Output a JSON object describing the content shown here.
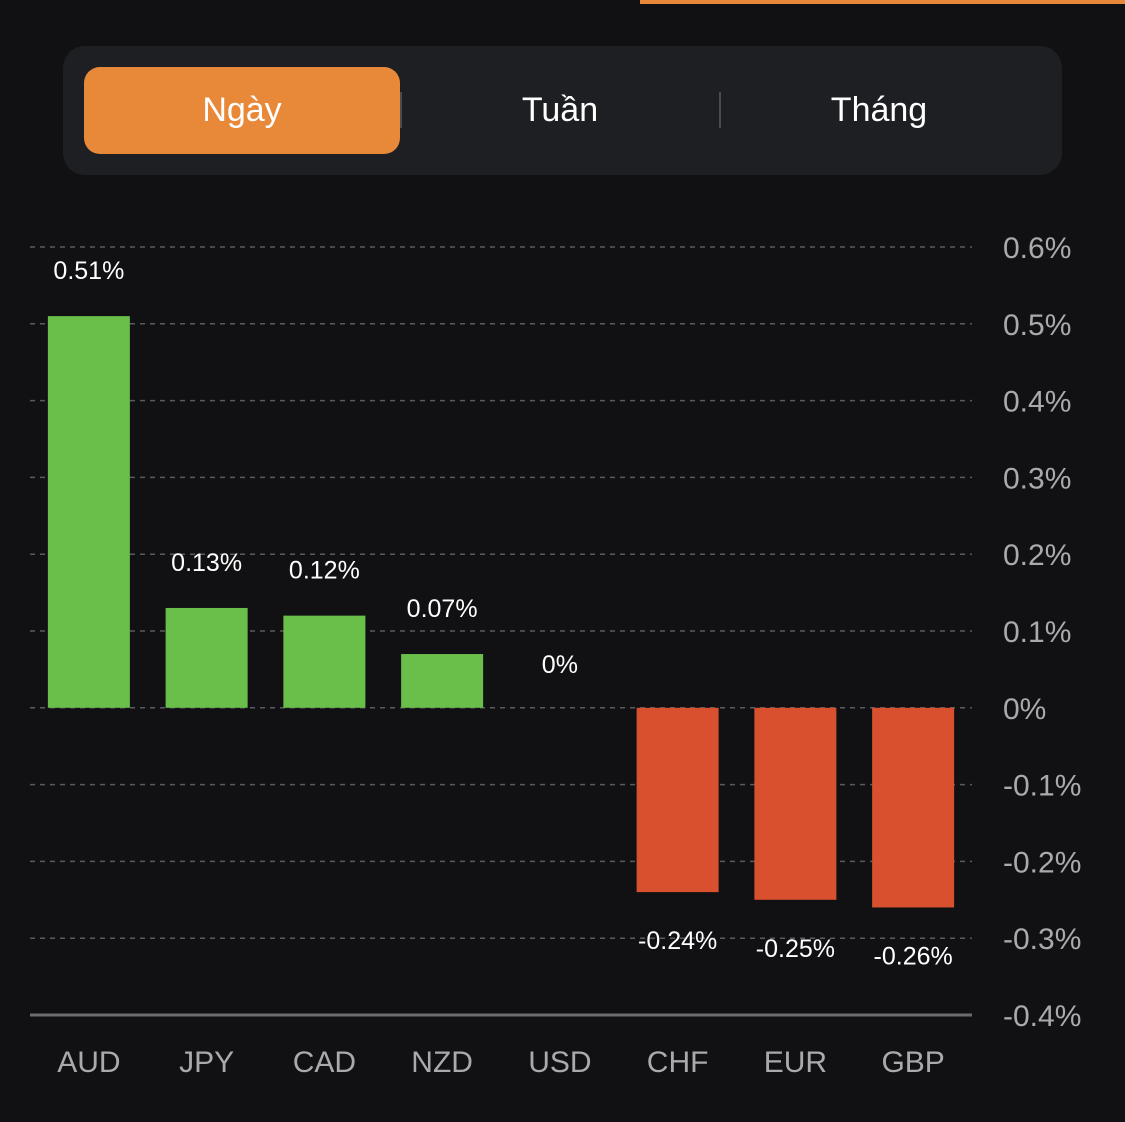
{
  "tabs": [
    {
      "label": "Ngày",
      "active": true
    },
    {
      "label": "Tuần",
      "active": false
    },
    {
      "label": "Tháng",
      "active": false
    }
  ],
  "colors": {
    "accent": "#e8893a",
    "positive": "#6abf4b",
    "negative": "#d8502e",
    "background": "#111113",
    "grid": "#5a5b60"
  },
  "chart_data": {
    "type": "bar",
    "categories": [
      "AUD",
      "JPY",
      "CAD",
      "NZD",
      "USD",
      "CHF",
      "EUR",
      "GBP"
    ],
    "values": [
      0.51,
      0.13,
      0.12,
      0.07,
      0,
      -0.24,
      -0.25,
      -0.26
    ],
    "value_labels": [
      "0.51%",
      "0.13%",
      "0.12%",
      "0.07%",
      "0%",
      "-0.24%",
      "-0.25%",
      "-0.26%"
    ],
    "ylim": [
      -0.4,
      0.6
    ],
    "yticks": [
      0.6,
      0.5,
      0.4,
      0.3,
      0.2,
      0.1,
      0,
      -0.1,
      -0.2,
      -0.3,
      -0.4
    ],
    "ytick_labels": [
      "0.6%",
      "0.5%",
      "0.4%",
      "0.3%",
      "0.2%",
      "0.1%",
      "0%",
      "-0.1%",
      "-0.2%",
      "-0.3%",
      "-0.4%"
    ],
    "y_axis_side": "right",
    "grid": true,
    "title": "",
    "xlabel": "",
    "ylabel": ""
  }
}
